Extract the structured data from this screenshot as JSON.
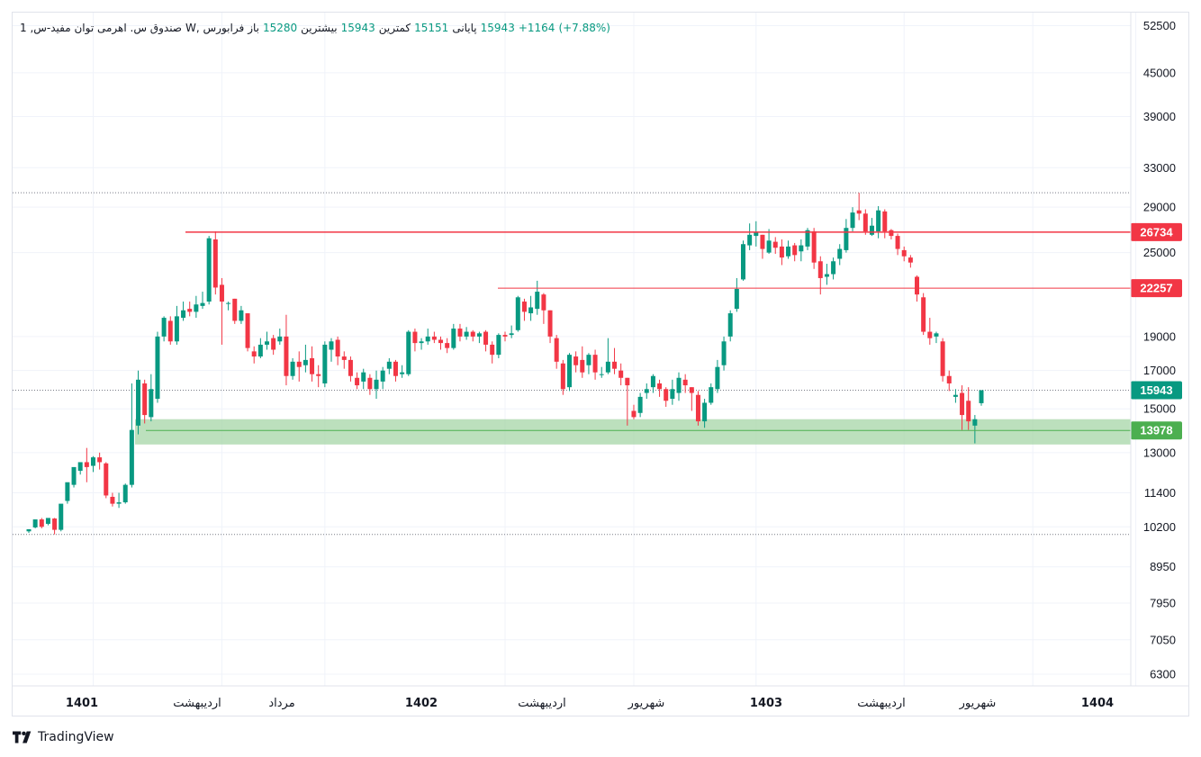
{
  "legend": {
    "symbol": "صندوق س. اهرمی توان مفید-س, 1",
    "exchange": "W, فرابورس",
    "open_label": "باز",
    "open": "15280",
    "high_label": "بیشترین",
    "high": "15943",
    "low_label": "کمترین",
    "low": "15151",
    "close_label": "پایانی",
    "close": "15943",
    "change": "+1164",
    "change_pct": "(+7.88%)"
  },
  "brand": {
    "name": "TradingView"
  },
  "colors": {
    "up": "#089981",
    "down": "#f23645",
    "zone": "#a5d6a7",
    "support": "#4caf50",
    "resistance": "#f23645"
  },
  "chart_data": {
    "type": "candlestick",
    "scale": "log",
    "ylim": [
      6000,
      55000
    ],
    "y_ticks": [
      52500,
      45000,
      39000,
      33000,
      29000,
      25000,
      19000,
      17000,
      15000,
      13000,
      11400,
      10200,
      8950,
      7950,
      7050,
      6300
    ],
    "x_ticks": [
      "1401",
      "اردیبهشت",
      "مرداد",
      "1402",
      "اردیبهشت",
      "شهریور",
      "1403",
      "اردیبهشت",
      "شهریور",
      "1404"
    ],
    "price_labels": [
      {
        "value": 26734,
        "kind": "resistance"
      },
      {
        "value": 22257,
        "kind": "resistance"
      },
      {
        "value": 15943,
        "kind": "last"
      },
      {
        "value": 13978,
        "kind": "support"
      }
    ],
    "support_zone": [
      13350,
      14500
    ],
    "dotted_levels": [
      30400,
      15943,
      9950
    ],
    "candles": [
      [
        10050,
        10120,
        10000,
        10100
      ],
      [
        10180,
        10450,
        10150,
        10400
      ],
      [
        10450,
        10200,
        10150,
        10500
      ],
      [
        10300,
        10500,
        10250,
        10450
      ],
      [
        10480,
        10100,
        9950,
        10500
      ],
      [
        10100,
        11000,
        10050,
        10950
      ],
      [
        11100,
        11800,
        11000,
        11750
      ],
      [
        11700,
        12400,
        11600,
        12300
      ],
      [
        12250,
        12600,
        12100,
        12550
      ],
      [
        12600,
        12400,
        11800,
        13200
      ],
      [
        12450,
        12800,
        12200,
        12850
      ],
      [
        12800,
        12600,
        12300,
        13000
      ],
      [
        12550,
        11300,
        11200,
        12600
      ],
      [
        11250,
        11000,
        10900,
        11400
      ],
      [
        11000,
        11050,
        10850,
        11400
      ],
      [
        11050,
        11700,
        11000,
        11750
      ],
      [
        11700,
        14000,
        11600,
        16300
      ],
      [
        14200,
        16500,
        13800,
        17000
      ],
      [
        16300,
        14700,
        14300,
        16500
      ],
      [
        14600,
        16000,
        14400,
        16800
      ],
      [
        15500,
        19000,
        15300,
        19300
      ],
      [
        19000,
        20200,
        18700,
        20300
      ],
      [
        20000,
        18700,
        18500,
        20300
      ],
      [
        18700,
        20300,
        18500,
        21000
      ],
      [
        20200,
        20700,
        20000,
        21300
      ],
      [
        20800,
        20600,
        20300,
        21300
      ],
      [
        20600,
        21100,
        20200,
        21700
      ],
      [
        21000,
        21200,
        20800,
        22000
      ],
      [
        21300,
        26200,
        21100,
        26400
      ],
      [
        26100,
        22300,
        21800,
        26800
      ],
      [
        22500,
        21300,
        18500,
        23000
      ],
      [
        21200,
        21200,
        20700,
        21300
      ],
      [
        21500,
        20000,
        19800,
        21500
      ],
      [
        20000,
        20700,
        19800,
        21000
      ],
      [
        20500,
        18300,
        18100,
        20500
      ],
      [
        18100,
        17800,
        17400,
        18400
      ],
      [
        17800,
        18500,
        17700,
        18900
      ],
      [
        18500,
        18700,
        18200,
        19300
      ],
      [
        18900,
        18200,
        17900,
        19100
      ],
      [
        18700,
        19000,
        18500,
        19500
      ],
      [
        19000,
        16700,
        16200,
        20400
      ],
      [
        16700,
        17500,
        16500,
        17700
      ],
      [
        17500,
        17200,
        16400,
        18100
      ],
      [
        17300,
        17600,
        16900,
        18500
      ],
      [
        17700,
        16800,
        16400,
        18400
      ],
      [
        16800,
        16700,
        16100,
        17300
      ],
      [
        16300,
        18500,
        16100,
        18700
      ],
      [
        18200,
        18700,
        17500,
        18900
      ],
      [
        18800,
        17800,
        17300,
        19000
      ],
      [
        17800,
        17600,
        17100,
        18100
      ],
      [
        17600,
        16700,
        16400,
        17800
      ],
      [
        16600,
        16200,
        16000,
        16900
      ],
      [
        16400,
        16900,
        16000,
        17100
      ],
      [
        16600,
        16000,
        15700,
        16800
      ],
      [
        16000,
        16500,
        15500,
        17000
      ],
      [
        16400,
        17000,
        16000,
        17200
      ],
      [
        17100,
        17500,
        16800,
        17700
      ],
      [
        17500,
        16700,
        16400,
        17600
      ],
      [
        16800,
        16900,
        16600,
        17300
      ],
      [
        16800,
        19300,
        16700,
        19400
      ],
      [
        19300,
        18600,
        18100,
        19500
      ],
      [
        18600,
        18700,
        18200,
        18900
      ],
      [
        18700,
        19000,
        18500,
        19500
      ],
      [
        19000,
        18800,
        18600,
        19300
      ],
      [
        18800,
        18600,
        18200,
        19000
      ],
      [
        18600,
        18300,
        18000,
        18900
      ],
      [
        18300,
        19500,
        18200,
        19800
      ],
      [
        19500,
        19000,
        18700,
        19800
      ],
      [
        19000,
        19300,
        18800,
        19600
      ],
      [
        19300,
        19000,
        18700,
        19400
      ],
      [
        19000,
        19200,
        18600,
        19300
      ],
      [
        19300,
        18500,
        18100,
        19400
      ],
      [
        18500,
        17900,
        17400,
        18700
      ],
      [
        17900,
        19100,
        17700,
        19200
      ],
      [
        19100,
        19000,
        18700,
        19300
      ],
      [
        19100,
        19200,
        18900,
        19700
      ],
      [
        19400,
        21600,
        19300,
        21700
      ],
      [
        21300,
        20600,
        20000,
        21500
      ],
      [
        20500,
        20900,
        20000,
        21700
      ],
      [
        20800,
        22000,
        20400,
        22800
      ],
      [
        21800,
        20700,
        19800,
        21900
      ],
      [
        20700,
        19000,
        18600,
        20700
      ],
      [
        18900,
        17500,
        17100,
        19100
      ],
      [
        17400,
        16000,
        15700,
        17600
      ],
      [
        16100,
        17900,
        15900,
        18000
      ],
      [
        17800,
        17300,
        16900,
        18100
      ],
      [
        17600,
        16900,
        16600,
        18400
      ],
      [
        17300,
        17900,
        16800,
        18000
      ],
      [
        17900,
        16900,
        16500,
        18200
      ],
      [
        16800,
        16800,
        16600,
        17200
      ],
      [
        16900,
        17500,
        16800,
        18900
      ],
      [
        17500,
        17100,
        16800,
        18300
      ],
      [
        17000,
        16600,
        16200,
        17400
      ],
      [
        16600,
        16200,
        14200,
        16600
      ],
      [
        14900,
        14600,
        14500,
        15200
      ],
      [
        14800,
        15600,
        14600,
        15800
      ],
      [
        15800,
        16000,
        15500,
        16300
      ],
      [
        16100,
        16700,
        15800,
        16800
      ],
      [
        16300,
        16000,
        15600,
        16500
      ],
      [
        16000,
        15400,
        15100,
        16100
      ],
      [
        15500,
        16000,
        15200,
        16500
      ],
      [
        15800,
        16600,
        15400,
        16900
      ],
      [
        16500,
        16200,
        15800,
        16800
      ],
      [
        16100,
        15800,
        14900,
        16100
      ],
      [
        15700,
        14400,
        14200,
        15900
      ],
      [
        14400,
        15300,
        14100,
        15500
      ],
      [
        15300,
        16100,
        15200,
        16300
      ],
      [
        16000,
        17200,
        15800,
        17600
      ],
      [
        17300,
        18700,
        17000,
        19000
      ],
      [
        19000,
        20500,
        18700,
        20700
      ],
      [
        20800,
        22200,
        20600,
        23000
      ],
      [
        22900,
        25700,
        22800,
        26000
      ],
      [
        25600,
        26500,
        25200,
        27500
      ],
      [
        26400,
        26700,
        25500,
        27700
      ],
      [
        26500,
        25300,
        24500,
        26500
      ],
      [
        25000,
        26000,
        24900,
        27000
      ],
      [
        25900,
        25400,
        24900,
        26300
      ],
      [
        25500,
        24600,
        24000,
        26100
      ],
      [
        24700,
        25500,
        24500,
        26000
      ],
      [
        25600,
        24800,
        24300,
        25800
      ],
      [
        25100,
        25600,
        24300,
        26100
      ],
      [
        25500,
        26900,
        25200,
        27100
      ],
      [
        26800,
        24200,
        23700,
        27100
      ],
      [
        24300,
        23000,
        21800,
        24700
      ],
      [
        23100,
        23300,
        22500,
        24100
      ],
      [
        23300,
        24300,
        22900,
        24600
      ],
      [
        24500,
        25300,
        24000,
        25700
      ],
      [
        25200,
        27100,
        25000,
        27900
      ],
      [
        27100,
        28500,
        26800,
        29000
      ],
      [
        28700,
        28400,
        27800,
        30400
      ],
      [
        28400,
        26800,
        26500,
        28800
      ],
      [
        26500,
        27300,
        26400,
        28000
      ],
      [
        26800,
        28700,
        26200,
        29100
      ],
      [
        28600,
        26800,
        26200,
        28800
      ],
      [
        26900,
        26400,
        26100,
        27000
      ],
      [
        26400,
        25300,
        24800,
        26600
      ],
      [
        25200,
        24700,
        24300,
        25500
      ],
      [
        24600,
        24200,
        23800,
        24800
      ],
      [
        23100,
        21800,
        21300,
        23200
      ],
      [
        21600,
        19300,
        19100,
        21900
      ],
      [
        19300,
        18900,
        18500,
        20200
      ],
      [
        19000,
        19200,
        18600,
        19300
      ],
      [
        18700,
        16700,
        16400,
        18900
      ],
      [
        16700,
        16300,
        15900,
        17000
      ],
      [
        15600,
        15700,
        15300,
        16000
      ],
      [
        15800,
        14700,
        14000,
        16200
      ],
      [
        15400,
        14400,
        14000,
        16100
      ],
      [
        14200,
        14500,
        13400,
        14700
      ],
      [
        15280,
        15943,
        15151,
        15943
      ]
    ]
  }
}
